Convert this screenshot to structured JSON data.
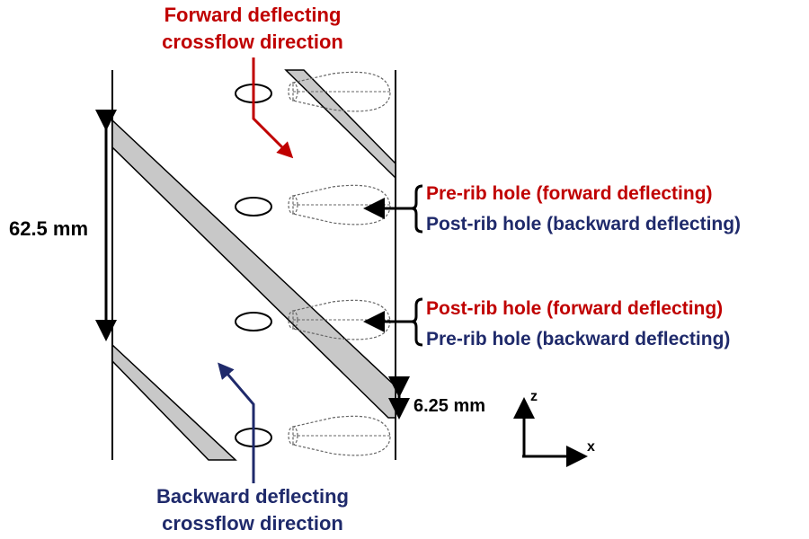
{
  "labels": {
    "forward_line1": "Forward deflecting",
    "forward_line2": "crossflow direction",
    "backward_line1": "Backward deflecting",
    "backward_line2": "crossflow direction",
    "dim_spacing": "62.5 mm",
    "dim_rib": "6.25 mm",
    "hole_group_1_red": "Pre-rib hole (forward deflecting)",
    "hole_group_1_blue": "Post-rib hole (backward deflecting)",
    "hole_group_2_red": "Post-rib hole (forward deflecting)",
    "hole_group_2_blue": "Pre-rib hole (backward deflecting)",
    "axis_z": "z",
    "axis_x": "x"
  },
  "colors": {
    "forward": "#c00000",
    "backward": "#1f2a6b",
    "rib_fill": "#c8c8c8",
    "line": "#000000"
  }
}
